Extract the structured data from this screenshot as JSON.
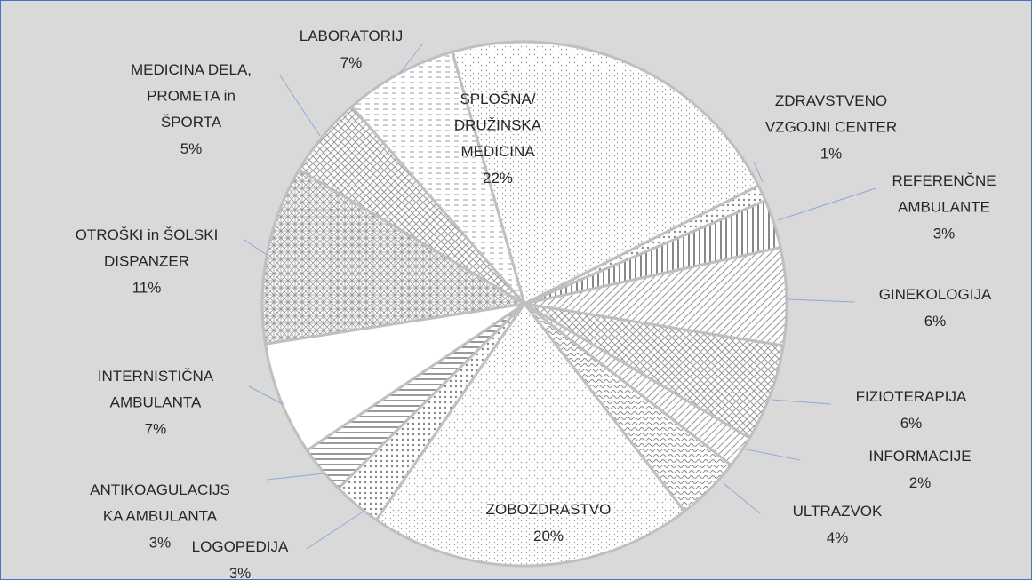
{
  "chart_data": {
    "type": "pie",
    "categories": [
      "SPLOŠNA/\nDRUŽINSKA\nMEDICINA",
      "ZDRAVSTVENO\nVZGOJNI CENTER",
      "REFERENČNE\nAMBULANTE",
      "GINEKOLOGIJA",
      "FIZIOTERAPIJA",
      "INFORMACIJE",
      "ULTRAZVOK",
      "ZOBOZDRASTVO",
      "LOGOPEDIJA",
      "ANTIKOAGULACIJS\nKA AMBULANTA",
      "INTERNISTIČNA\nAMBULANTA",
      "OTROŠKI in ŠOLSKI\nDISPANZER",
      "MEDICINA DELA,\nPROMETA in\nŠPORTA",
      "LABORATORIJ"
    ],
    "values": [
      22,
      1,
      3,
      6,
      6,
      2,
      4,
      20,
      3,
      3,
      7,
      11,
      5,
      7
    ],
    "value_labels": [
      "22%",
      "1%",
      "3%",
      "6%",
      "6%",
      "2%",
      "4%",
      "20%",
      "3%",
      "3%",
      "7%",
      "11%",
      "5%",
      "7%"
    ]
  }
}
